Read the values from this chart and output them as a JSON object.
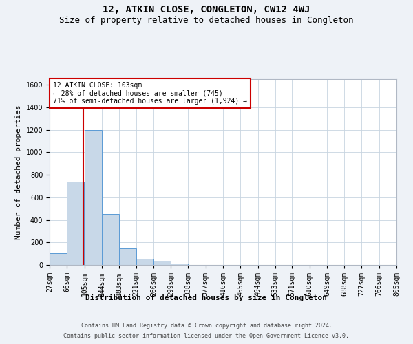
{
  "title": "12, ATKIN CLOSE, CONGLETON, CW12 4WJ",
  "subtitle": "Size of property relative to detached houses in Congleton",
  "xlabel": "Distribution of detached houses by size in Congleton",
  "ylabel": "Number of detached properties",
  "footer_line1": "Contains HM Land Registry data © Crown copyright and database right 2024.",
  "footer_line2": "Contains public sector information licensed under the Open Government Licence v3.0.",
  "bin_edges": [
    27,
    66,
    105,
    144,
    183,
    221,
    260,
    299,
    338,
    377,
    416,
    455,
    494,
    533,
    571,
    610,
    649,
    688,
    727,
    766,
    805
  ],
  "bar_heights": [
    105,
    740,
    1200,
    450,
    145,
    55,
    35,
    15,
    0,
    0,
    0,
    0,
    0,
    0,
    0,
    0,
    0,
    0,
    0,
    0
  ],
  "bar_color": "#c8d8e8",
  "bar_edgecolor": "#5b9bd5",
  "property_size": 103,
  "red_line_color": "#cc0000",
  "annotation_text": "12 ATKIN CLOSE: 103sqm\n← 28% of detached houses are smaller (745)\n71% of semi-detached houses are larger (1,924) →",
  "annotation_box_color": "#cc0000",
  "ylim": [
    0,
    1650
  ],
  "yticks": [
    0,
    200,
    400,
    600,
    800,
    1000,
    1200,
    1400,
    1600
  ],
  "bg_color": "#eef2f7",
  "plot_bg_color": "#ffffff",
  "grid_color": "#c8d4e0",
  "title_fontsize": 10,
  "subtitle_fontsize": 9,
  "label_fontsize": 8,
  "tick_fontsize": 7,
  "footer_fontsize": 6,
  "annotation_fontsize": 7
}
